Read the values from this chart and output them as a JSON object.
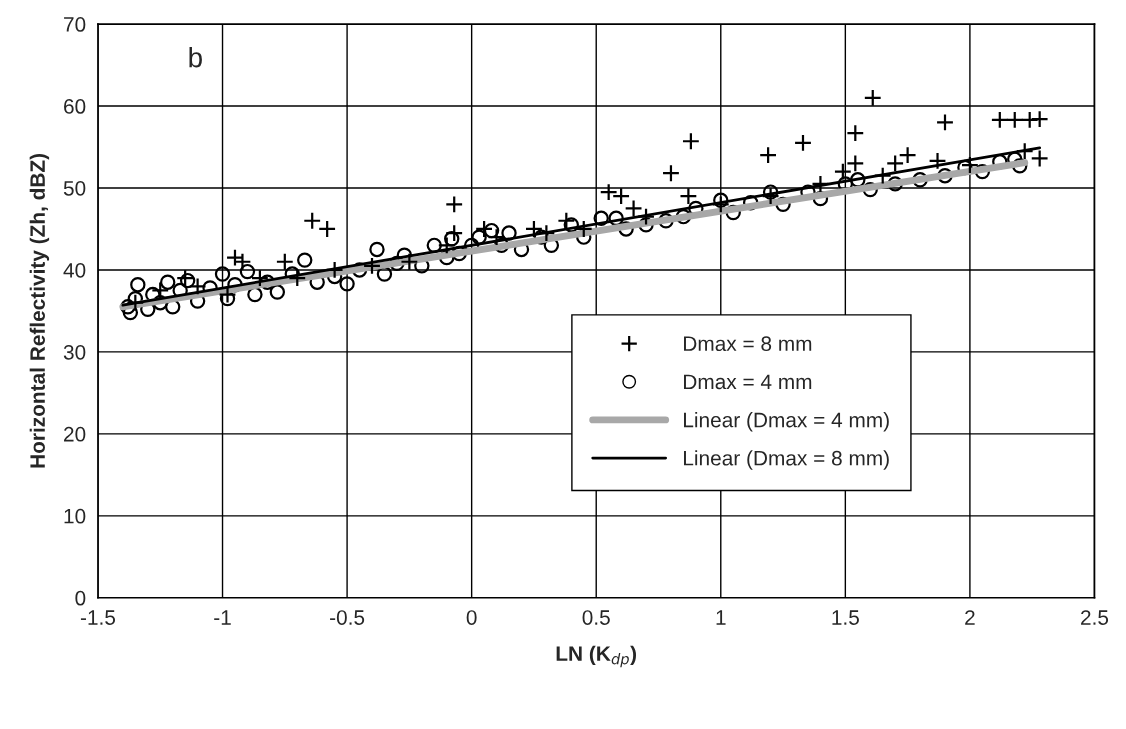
{
  "chart_data": {
    "type": "scatter",
    "xlabel": "LN (K$_{dp}$)",
    "ylabel": "Horizontal Reflectivity (Zh, dBZ)",
    "annotations": [
      "b"
    ],
    "xlim": [
      -1.5,
      2.5
    ],
    "xticks": [
      -1.5,
      -1,
      -0.5,
      0,
      0.5,
      1,
      1.5,
      2,
      2.5
    ],
    "ylim": [
      0,
      70
    ],
    "yticks": [
      0,
      10,
      20,
      30,
      40,
      50,
      60,
      70
    ],
    "grid": true,
    "legend": "center right",
    "series": [
      {
        "name": "Dmax = 8 mm",
        "marker": "cross",
        "color": "#000000",
        "x": [
          -0.64,
          -0.58,
          -0.95,
          -0.92,
          -0.75,
          -1.15,
          -0.07,
          -0.07,
          0.05,
          0.25,
          0.38,
          0.55,
          0.6,
          0.65,
          0.8,
          0.88,
          0.87,
          1.19,
          1.33,
          1.49,
          1.54,
          1.54,
          1.61,
          1.7,
          1.75,
          1.87,
          1.9,
          2.12,
          2.18,
          2.24,
          2.28,
          2.28,
          2.22,
          -1.35,
          -1.25,
          -1.1,
          -0.98,
          -0.85,
          -0.7,
          -0.55,
          -0.4,
          -0.25,
          -0.1,
          0.1,
          0.3,
          0.45,
          0.7,
          1.0,
          1.2,
          1.4,
          1.65,
          2.0
        ],
        "values": [
          46,
          45,
          41.5,
          41,
          41,
          39,
          48,
          44.5,
          45,
          45,
          46,
          49.5,
          49,
          47.5,
          51.8,
          55.7,
          49,
          54,
          55.5,
          52,
          56.7,
          53,
          61,
          53,
          54,
          53.3,
          58,
          58.3,
          58.3,
          58.3,
          58.4,
          53.6,
          54.5,
          36,
          37.5,
          38,
          37,
          39,
          39,
          40,
          40.5,
          41,
          43,
          44,
          44.5,
          45,
          46.5,
          48,
          49,
          50.5,
          51.5,
          52.8
        ]
      },
      {
        "name": "Dmax = 4 mm",
        "marker": "circle",
        "color": "#000000",
        "x": [
          -1.38,
          -1.37,
          -1.35,
          -1.34,
          -1.3,
          -1.28,
          -1.25,
          -1.22,
          -1.2,
          -1.17,
          -1.14,
          -1.1,
          -1.05,
          -1.0,
          -0.98,
          -0.95,
          -0.9,
          -0.87,
          -0.82,
          -0.78,
          -0.72,
          -0.67,
          -0.62,
          -0.55,
          -0.5,
          -0.45,
          -0.38,
          -0.35,
          -0.3,
          -0.27,
          -0.2,
          -0.15,
          -0.1,
          -0.08,
          -0.05,
          0.0,
          0.03,
          0.08,
          0.12,
          0.15,
          0.2,
          0.28,
          0.32,
          0.4,
          0.45,
          0.52,
          0.58,
          0.62,
          0.7,
          0.78,
          0.85,
          0.9,
          1.0,
          1.05,
          1.12,
          1.2,
          1.25,
          1.35,
          1.4,
          1.5,
          1.55,
          1.6,
          1.7,
          1.8,
          1.9,
          1.98,
          2.05,
          2.12,
          2.2,
          2.18
        ],
        "values": [
          35.5,
          34.8,
          36.5,
          38.2,
          35.2,
          37,
          36,
          38.5,
          35.5,
          37.5,
          38.7,
          36.2,
          37.8,
          39.5,
          36.5,
          38.2,
          39.8,
          37,
          38.5,
          37.3,
          39.5,
          41.2,
          38.5,
          39.2,
          38.3,
          40,
          42.5,
          39.5,
          40.8,
          41.8,
          40.5,
          43,
          41.5,
          43.8,
          42,
          43,
          44,
          44.8,
          43,
          44.5,
          42.5,
          44,
          43,
          45.5,
          44,
          46.3,
          46.3,
          45,
          45.5,
          46,
          46.5,
          47.5,
          48.5,
          47,
          48.2,
          49.5,
          48,
          49.5,
          48.7,
          50.5,
          51,
          49.8,
          50.5,
          51,
          51.5,
          52.5,
          52,
          53.2,
          52.7,
          53.5
        ]
      },
      {
        "name": "Linear (Dmax = 4 mm)",
        "type": "line",
        "color": "#a8a8a8",
        "x": [
          -1.4,
          2.22
        ],
        "values": [
          35.5,
          53.1
        ]
      },
      {
        "name": "Linear (Dmax = 8 mm)",
        "type": "line",
        "color": "#000000",
        "x": [
          -1.4,
          2.28
        ],
        "values": [
          35.7,
          54.9
        ]
      }
    ]
  }
}
